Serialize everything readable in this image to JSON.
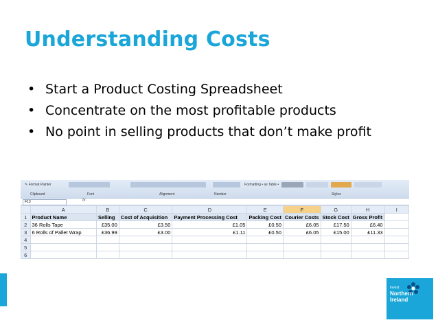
{
  "slide": {
    "title": "Understanding Costs",
    "bullets": [
      "Start a Product Costing Spreadsheet",
      "Concentrate on the most profitable products",
      "No point in selling products that don’t make profit"
    ]
  },
  "ribbon": {
    "format_painter": "Format Painter",
    "clipboard": "Clipboard",
    "font": "Font",
    "alignment": "Alignment",
    "number": "Number",
    "styles": "Styles",
    "formatting_as_table": "Formatting • as Table •"
  },
  "formula_bar": {
    "name_box": "F13",
    "fx": "fx"
  },
  "spreadsheet": {
    "columns": [
      "A",
      "B",
      "C",
      "D",
      "E",
      "F",
      "G",
      "H",
      "I"
    ],
    "rows": [
      {
        "num": "1",
        "cells": [
          "Product Name",
          "Selling",
          "Cost of Acquisition",
          "Payment Processing Cost",
          "Packing Cost",
          "Courier Costs",
          "Stock Cost",
          "Gross Profit",
          ""
        ]
      },
      {
        "num": "2",
        "cells": [
          "36 Rolls Tape",
          "£35.00",
          "£3.50",
          "£1.05",
          "£0.50",
          "£6.05",
          "£17.50",
          "£6.40",
          ""
        ]
      },
      {
        "num": "3",
        "cells": [
          "6 Rolls of Pallet Wrap",
          "£36.99",
          "£3.00",
          "£1.11",
          "£0.50",
          "£6.05",
          "£15.00",
          "£11.33",
          ""
        ]
      },
      {
        "num": "4",
        "cells": [
          "",
          "",
          "",
          "",
          "",
          "",
          "",
          "",
          ""
        ]
      },
      {
        "num": "5",
        "cells": [
          "",
          "",
          "",
          "",
          "",
          "",
          "",
          "",
          ""
        ]
      },
      {
        "num": "6",
        "cells": [
          "",
          "",
          "",
          "",
          "",
          "",
          "",
          "",
          ""
        ]
      }
    ],
    "selected_column": "F"
  },
  "logo": {
    "line1": "Invest",
    "line2": "Northern",
    "line3": "Ireland",
    "color": "#1aa6d8"
  },
  "colors": {
    "title": "#1aa6d8",
    "accent": "#1aa6d8"
  }
}
